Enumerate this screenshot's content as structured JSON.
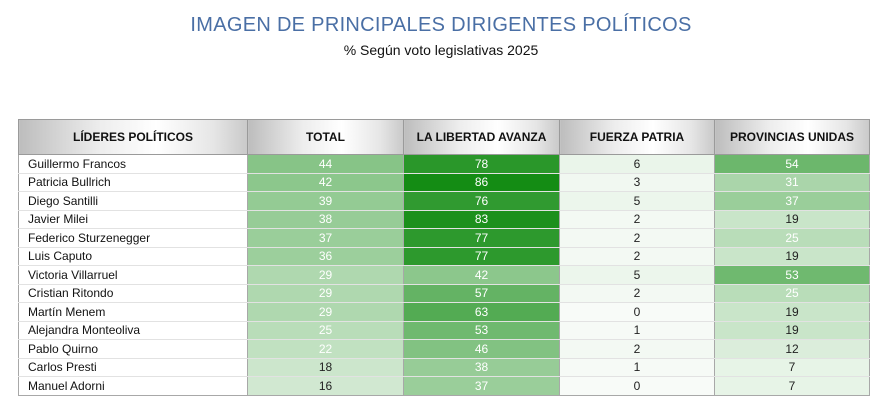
{
  "title": "IMAGEN DE PRINCIPALES DIRIGENTES POLÍTICOS",
  "subtitle": "% Según voto legislativas 2025",
  "headers": [
    "LÍDERES POLÍTICOS",
    "TOTAL",
    "LA LIBERTAD AVANZA",
    "FUERZA PATRIA",
    "PROVINCIAS UNIDAS"
  ],
  "rows": [
    {
      "name": "Guillermo Francos",
      "values": [
        44,
        78,
        6,
        54
      ]
    },
    {
      "name": "Patricia Bullrich",
      "values": [
        42,
        86,
        3,
        31
      ]
    },
    {
      "name": "Diego Santilli",
      "values": [
        39,
        76,
        5,
        37
      ]
    },
    {
      "name": "Javier Milei",
      "values": [
        38,
        83,
        2,
        19
      ]
    },
    {
      "name": "Federico Sturzenegger",
      "values": [
        37,
        77,
        2,
        25
      ]
    },
    {
      "name": "Luis Caputo",
      "values": [
        36,
        77,
        2,
        19
      ]
    },
    {
      "name": "Victoria Villarruel",
      "values": [
        29,
        42,
        5,
        53
      ]
    },
    {
      "name": "Cristian Ritondo",
      "values": [
        29,
        57,
        2,
        25
      ]
    },
    {
      "name": "Martín Menem",
      "values": [
        29,
        63,
        0,
        19
      ]
    },
    {
      "name": "Alejandra Monteoliva",
      "values": [
        25,
        53,
        1,
        19
      ]
    },
    {
      "name": "Pablo Quirno",
      "values": [
        22,
        46,
        2,
        12
      ]
    },
    {
      "name": "Carlos Presti",
      "values": [
        18,
        38,
        1,
        7
      ]
    },
    {
      "name": "Manuel Adorni",
      "values": [
        16,
        37,
        0,
        7
      ]
    }
  ],
  "colors": {
    "heat_low": "#ffffff",
    "heat_high": "#0f8a0f",
    "title": "#4a6fa5"
  }
}
